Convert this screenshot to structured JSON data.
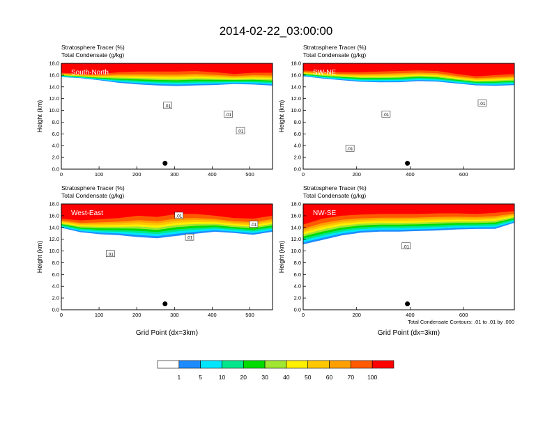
{
  "figure": {
    "title": "2014-02-22_03:00:00",
    "note": "Total Condensate Contours: .01 to .01 by .000"
  },
  "colors": {
    "levels": [
      "#ffffff",
      "#1e8cff",
      "#00e6ff",
      "#00e68c",
      "#00dc00",
      "#a0e632",
      "#fff000",
      "#ffc800",
      "#ffa000",
      "#ff5a00",
      "#ff0000"
    ],
    "contour": "#000000"
  },
  "colorbar": {
    "labels": [
      "1",
      "5",
      "10",
      "20",
      "30",
      "40",
      "50",
      "60",
      "70",
      "100"
    ]
  },
  "chart_data": [
    {
      "type": "heatmap",
      "name": "South-North",
      "title_lines": [
        "Stratosphere Tracer   (%)",
        "Total Condensate   (g/kg)"
      ],
      "ylabel": "Height (km)",
      "xlabel": "",
      "xlim": [
        0,
        560
      ],
      "ylim": [
        0,
        18
      ],
      "xticks": [
        0,
        100,
        200,
        300,
        400,
        500
      ],
      "yticks": [
        "0.0",
        "2.0",
        "4.0",
        "6.0",
        "8.0",
        "10.0",
        "12.0",
        "14.0",
        "16.0",
        "18.0"
      ],
      "marker": [
        275,
        1.0
      ],
      "contour_labels": [
        {
          "x": 282,
          "y": 10.8,
          "text": ".01"
        },
        {
          "x": 443,
          "y": 9.3,
          "text": ".01"
        },
        {
          "x": 475,
          "y": 6.5,
          "text": ".01"
        }
      ],
      "tracer_base_km": [
        15.6,
        15.4,
        15.0,
        14.5,
        14.2,
        14.0,
        13.9,
        14.0,
        14.1,
        14.3,
        14.2,
        14.0
      ],
      "max_layer_base_km": [
        16.4,
        16.2,
        16.2,
        16.5,
        16.6,
        16.6,
        16.6,
        16.7,
        16.5,
        16.2,
        16.4,
        16.4
      ]
    },
    {
      "type": "heatmap",
      "name": "SW-NE",
      "title_lines": [
        "Stratosphere Tracer   (%)",
        "Total Condensate   (g/kg)"
      ],
      "ylabel": "Height (km)",
      "xlabel": "",
      "xlim": [
        0,
        790
      ],
      "ylim": [
        0,
        18
      ],
      "xticks": [
        0,
        200,
        400,
        600
      ],
      "yticks": [
        "0.0",
        "2.0",
        "4.0",
        "6.0",
        "8.0",
        "10.0",
        "12.0",
        "14.0",
        "16.0",
        "18.0"
      ],
      "marker": [
        390,
        1.0
      ],
      "contour_labels": [
        {
          "x": 310,
          "y": 9.3,
          "text": ".01"
        },
        {
          "x": 175,
          "y": 3.5,
          "text": ".01"
        },
        {
          "x": 670,
          "y": 11.2,
          "text": ".01"
        }
      ],
      "tracer_base_km": [
        15.7,
        15.3,
        15.0,
        14.7,
        14.6,
        14.6,
        14.8,
        14.7,
        14.4,
        14.1,
        14.0,
        14.1
      ],
      "max_layer_base_km": [
        16.8,
        16.6,
        16.5,
        16.5,
        16.6,
        16.7,
        16.8,
        16.7,
        16.2,
        15.8,
        16.0,
        16.2
      ]
    },
    {
      "type": "heatmap",
      "name": "West-East",
      "title_lines": [
        "Stratosphere Tracer   (%)",
        "Total Condensate   (g/kg)"
      ],
      "ylabel": "Height (km)",
      "xlabel": "Grid Point (dx=3km)",
      "xlim": [
        0,
        560
      ],
      "ylim": [
        0,
        18
      ],
      "xticks": [
        0,
        100,
        200,
        300,
        400,
        500
      ],
      "yticks": [
        "0.0",
        "2.0",
        "4.0",
        "6.0",
        "8.0",
        "10.0",
        "12.0",
        "14.0",
        "16.0",
        "18.0"
      ],
      "marker": [
        275,
        1.0
      ],
      "contour_labels": [
        {
          "x": 130,
          "y": 9.5,
          "text": ".01"
        },
        {
          "x": 340,
          "y": 12.3,
          "text": ".01"
        },
        {
          "x": 312,
          "y": 16.0,
          "text": ".01"
        },
        {
          "x": 510,
          "y": 14.5,
          "text": ".01"
        }
      ],
      "tracer_base_km": [
        13.8,
        13.0,
        12.6,
        12.4,
        12.0,
        11.8,
        12.2,
        12.6,
        13.0,
        12.8,
        12.5,
        13.0
      ],
      "max_layer_base_km": [
        15.5,
        15.2,
        15.4,
        15.6,
        16.0,
        15.8,
        16.3,
        16.3,
        16.0,
        15.6,
        15.5,
        16.0
      ]
    },
    {
      "type": "heatmap",
      "name": "NW-SE",
      "title_lines": [
        "Stratosphere Tracer   (%)",
        "Total Condensate   (g/kg)"
      ],
      "ylabel": "Height (km)",
      "xlabel": "Grid Point (dx=3km)",
      "xlim": [
        0,
        790
      ],
      "ylim": [
        0,
        18
      ],
      "xticks": [
        0,
        200,
        400,
        600
      ],
      "yticks": [
        "0.0",
        "2.0",
        "4.0",
        "6.0",
        "8.0",
        "10.0",
        "12.0",
        "14.0",
        "16.0",
        "18.0"
      ],
      "marker": [
        390,
        1.0
      ],
      "contour_labels": [
        {
          "x": 385,
          "y": 10.8,
          "text": ".01"
        }
      ],
      "tracer_base_km": [
        10.8,
        11.5,
        12.3,
        12.8,
        13.0,
        13.0,
        13.1,
        13.2,
        13.4,
        13.5,
        13.5,
        14.6
      ],
      "max_layer_base_km": [
        14.5,
        15.5,
        16.0,
        16.2,
        16.3,
        16.3,
        16.3,
        16.4,
        16.4,
        16.3,
        16.5,
        16.8
      ]
    }
  ]
}
